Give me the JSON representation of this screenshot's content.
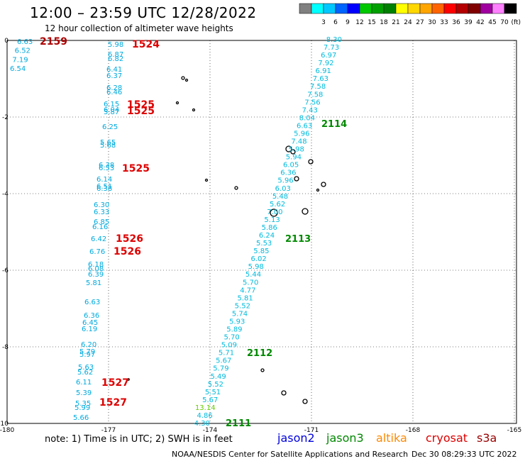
{
  "header": {
    "title": "12:00 – 23:59 UTC 12/28/2022",
    "subtitle": "12 hour collection of altimeter wave heights"
  },
  "legend": {
    "unit": "(ft)",
    "bins": [
      {
        "label": "",
        "color": "#808080"
      },
      {
        "label": "3",
        "color": "#00ffff"
      },
      {
        "label": "6",
        "color": "#00c8ff"
      },
      {
        "label": "9",
        "color": "#0064ff"
      },
      {
        "label": "12",
        "color": "#0000ff"
      },
      {
        "label": "15",
        "color": "#00c800"
      },
      {
        "label": "18",
        "color": "#00a000"
      },
      {
        "label": "21",
        "color": "#008000"
      },
      {
        "label": "24",
        "color": "#ffff00"
      },
      {
        "label": "27",
        "color": "#ffd700"
      },
      {
        "label": "30",
        "color": "#ffa500"
      },
      {
        "label": "33",
        "color": "#ff6400"
      },
      {
        "label": "36",
        "color": "#ff0000"
      },
      {
        "label": "39",
        "color": "#b40000"
      },
      {
        "label": "42",
        "color": "#800000"
      },
      {
        "label": "45",
        "color": "#a000a0"
      },
      {
        "label": "70",
        "color": "#ff80ff"
      },
      {
        "label": "",
        "color": "#000000"
      }
    ]
  },
  "axes": {
    "x_ticks": [
      "-180",
      "-177",
      "-174",
      "-171",
      "-168",
      "-165"
    ],
    "y_ticks": [
      "0",
      "-2",
      "-4",
      "-6",
      "-8",
      "-10"
    ]
  },
  "tracks": [
    {
      "name": "track_west_edge",
      "color": "#00aadd",
      "labels": [
        "6.63",
        "6.52",
        "7.19",
        "6.54"
      ]
    },
    {
      "name": "track_west",
      "color": "#00aadd",
      "labels": [
        "5.98",
        "6.87",
        "6.82",
        "6.41",
        "6.37",
        "6.28",
        "6.46",
        "6.15",
        "6.04",
        "5.87",
        "6.25",
        "5.65",
        "5.68",
        "6.38",
        "6.53",
        "6.14",
        "6.51",
        "6.38",
        "6.30",
        "6.33",
        "6.85",
        "6.16",
        "6.42",
        "6.76",
        "6.18",
        "6.08",
        "6.39",
        "5.81",
        "6.63",
        "6.36",
        "6.45",
        "6.19",
        "6.20",
        "5.79",
        "5.97",
        "5.63",
        "5.62",
        "6.11",
        "5.39",
        "5.35",
        "5.99",
        "5.66"
      ]
    },
    {
      "name": "track_east",
      "color": "#00bbdd",
      "labels": [
        "8.30",
        "7.73",
        "6.97",
        "7.92",
        "6.91",
        "7.63",
        "7.58",
        "7.58",
        "7.56",
        "7.43",
        "8.04",
        "6.63",
        "5.96",
        "7.48",
        "5.98",
        "5.94",
        "6.05",
        "6.36",
        "5.96",
        "6.03",
        "5.48",
        "5.62",
        "7.00",
        "5.13",
        "5.86",
        "6.24",
        "5.53",
        "5.85",
        "6.02",
        "5.98",
        "5.44",
        "5.70",
        "4.77",
        "5.81",
        "5.52",
        "5.74",
        "5.93",
        "5.89",
        "5.70",
        "5.09",
        "5.71",
        "5.67",
        "5.79",
        "5.49",
        "5.52",
        "5.51",
        "5.67",
        "13.14",
        "4.86",
        "4.30"
      ]
    }
  ],
  "time_labels": [
    {
      "text": "2159",
      "color": "#aa0000"
    },
    {
      "text": "1524",
      "color": "#dd0000"
    },
    {
      "text": "1525",
      "color": "#dd0000"
    },
    {
      "text": "1525",
      "color": "#dd0000"
    },
    {
      "text": "1525",
      "color": "#dd0000"
    },
    {
      "text": "1526",
      "color": "#dd0000"
    },
    {
      "text": "1526",
      "color": "#dd0000"
    },
    {
      "text": "1527",
      "color": "#dd0000"
    },
    {
      "text": "1527",
      "color": "#dd0000"
    },
    {
      "text": "2114",
      "color": "#008800"
    },
    {
      "text": "2113",
      "color": "#008800"
    },
    {
      "text": "2112",
      "color": "#008800"
    },
    {
      "text": "2111",
      "color": "#008800"
    }
  ],
  "footer": {
    "note": "note: 1) Time is in UTC; 2) SWH is in feet",
    "satellites": [
      {
        "name": "jason2",
        "color": "#0000dd"
      },
      {
        "name": "jason3",
        "color": "#008800"
      },
      {
        "name": "altika",
        "color": "#ff8800"
      },
      {
        "name": "cryosat",
        "color": "#dd0000"
      },
      {
        "name": "s3a",
        "color": "#990000"
      }
    ],
    "credit": "NOAA/NESDIS Center for Satellite Applications and Research",
    "timestamp": "Dec 30 08:29:33 UTC 2022"
  }
}
